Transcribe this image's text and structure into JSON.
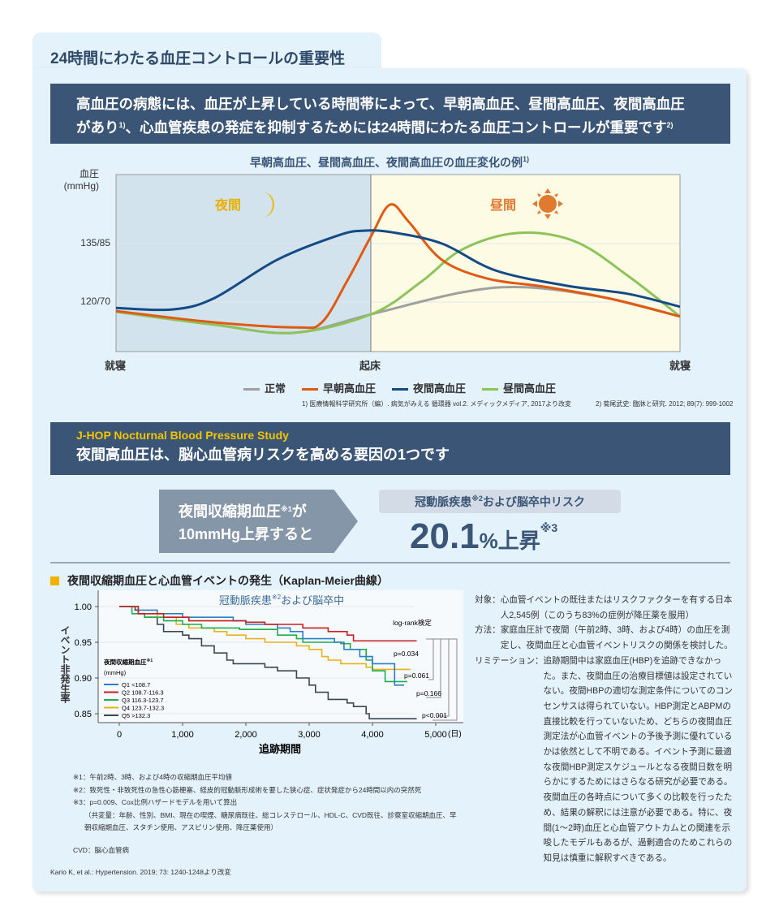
{
  "tab_title": "24時間にわたる血圧コントロールの重要性",
  "banner1": {
    "line1": "高血圧の病態には、血圧が上昇している時間帯によって、早朝高血圧、昼間高血圧、夜間高血圧",
    "line2a": "があり",
    "sup1": "1)",
    "line2b": "、心血管疾患の発症を抑制するためには24時間にわたる血圧コントロールが重要です",
    "sup2": "2)"
  },
  "chart_data": [
    {
      "type": "line",
      "title": "早朝高血圧、昼間高血圧、夜間高血圧の血圧変化の例",
      "title_sup": "1)",
      "ylabel": "血圧",
      "yunit": "(mmHg)",
      "ytick_labels": [
        "135/85",
        "120/70"
      ],
      "xtick_labels": [
        "就寝",
        "起床",
        "就寝"
      ],
      "x_domain": [
        0,
        100
      ],
      "wake_x": 45.3,
      "y_domain_systolic": [
        107.3,
        152.7
      ],
      "regions": {
        "night": "夜間",
        "day": "昼間"
      },
      "series": [
        {
          "name": "正常",
          "color": "#a0a0a0",
          "x": [
            0,
            17.4,
            31.4,
            45.3,
            61.4,
            72.5,
            87.2,
            100
          ],
          "y": [
            117.5,
            114.2,
            112.1,
            116.9,
            122.5,
            123.8,
            121,
            116.3
          ]
        },
        {
          "name": "早朝高血圧",
          "color": "#e05a14",
          "x": [
            0,
            17.4,
            32.1,
            36.5,
            40.9,
            45.3,
            48.6,
            51.9,
            57.8,
            65.9,
            76.1,
            87.2,
            100
          ],
          "y": [
            117.7,
            114.8,
            113.5,
            114.8,
            125.2,
            137.1,
            145,
            140.6,
            130.8,
            126,
            123.9,
            121,
            116.3
          ]
        },
        {
          "name": "夜間高血圧",
          "color": "#144a86",
          "x": [
            0,
            10,
            17.4,
            28.5,
            39.4,
            43.9,
            48.9,
            57.8,
            67.3,
            79.9,
            90.8,
            100
          ],
          "y": [
            118.5,
            118.1,
            121,
            130.8,
            137.1,
            138.3,
            137.9,
            135,
            128.1,
            124.2,
            122.1,
            118.8
          ]
        },
        {
          "name": "昼間高血圧",
          "color": "#8cc45a",
          "x": [
            0,
            17.4,
            31.4,
            45.3,
            54.1,
            61.4,
            71.1,
            81.3,
            90.8,
            100
          ],
          "y": [
            117.5,
            114.2,
            112.1,
            116.9,
            125.2,
            133.5,
            137.7,
            135.6,
            126.7,
            116.3
          ]
        }
      ]
    },
    {
      "type": "line",
      "subtype": "kaplan-meier",
      "title": "冠動脈疾患",
      "title_sup": "※2",
      "title_rest": "および脳卒中",
      "ylabel": "イベント非発生率",
      "xlabel": "追跡期間",
      "xunit": "(日)",
      "xlim": [
        0,
        5000
      ],
      "ylim": [
        0.85,
        1.0
      ],
      "xticks": [
        0,
        1000,
        2000,
        3000,
        4000,
        5000
      ],
      "xtick_labels": [
        "0",
        "1,000",
        "2,000",
        "3,000",
        "4,000",
        "5,000"
      ],
      "yticks": [
        1.0,
        0.95,
        0.9,
        0.85
      ],
      "ytick_labels": [
        "1.00",
        "0.95",
        "0.90",
        "0.85"
      ],
      "legend_title": "夜間収縮期血圧",
      "legend_title_sup": "※1",
      "legend_unit": "(mmHg)",
      "test_label": "log-rank検定",
      "pvalues": [
        "p=0.034",
        "p=0.061",
        "p=0.166",
        "p<0.001"
      ],
      "series": [
        {
          "name": "Q1 <108.7",
          "color": "#2a7fc4",
          "points": [
            [
              0,
              1
            ],
            [
              300,
              0.995
            ],
            [
              600,
              0.99
            ],
            [
              1000,
              0.985
            ],
            [
              1800,
              0.98
            ],
            [
              2000,
              0.975
            ],
            [
              2500,
              0.97
            ],
            [
              2700,
              0.965
            ],
            [
              2900,
              0.955
            ],
            [
              3400,
              0.95
            ],
            [
              3550,
              0.94
            ],
            [
              3800,
              0.93
            ],
            [
              4000,
              0.92
            ],
            [
              4350,
              0.89
            ],
            [
              4500,
              0.89
            ]
          ]
        },
        {
          "name": "Q2 108.7-116.3",
          "color": "#c8201e",
          "points": [
            [
              0,
              1
            ],
            [
              300,
              0.99
            ],
            [
              700,
              0.985
            ],
            [
              1100,
              0.98
            ],
            [
              2000,
              0.978
            ],
            [
              2300,
              0.975
            ],
            [
              2900,
              0.97
            ],
            [
              3300,
              0.965
            ],
            [
              3600,
              0.96
            ],
            [
              3700,
              0.952
            ],
            [
              4700,
              0.952
            ]
          ]
        },
        {
          "name": "Q3 116.3-123.7",
          "color": "#1fae4c",
          "points": [
            [
              0,
              1
            ],
            [
              200,
              0.99
            ],
            [
              400,
              0.985
            ],
            [
              700,
              0.98
            ],
            [
              1000,
              0.975
            ],
            [
              1300,
              0.97
            ],
            [
              1900,
              0.968
            ],
            [
              2500,
              0.96
            ],
            [
              2800,
              0.955
            ],
            [
              2900,
              0.95
            ],
            [
              3500,
              0.948
            ],
            [
              3650,
              0.94
            ],
            [
              3900,
              0.925
            ],
            [
              4000,
              0.91
            ],
            [
              4200,
              0.895
            ],
            [
              4550,
              0.895
            ]
          ]
        },
        {
          "name": "Q4 123.7-132.3",
          "color": "#e8b21e",
          "points": [
            [
              0,
              1
            ],
            [
              300,
              0.99
            ],
            [
              600,
              0.985
            ],
            [
              900,
              0.975
            ],
            [
              1100,
              0.97
            ],
            [
              1500,
              0.965
            ],
            [
              1700,
              0.96
            ],
            [
              2000,
              0.955
            ],
            [
              2300,
              0.95
            ],
            [
              2800,
              0.945
            ],
            [
              3000,
              0.94
            ],
            [
              3200,
              0.93
            ],
            [
              3300,
              0.925
            ],
            [
              3500,
              0.92
            ],
            [
              3900,
              0.915
            ],
            [
              4000,
              0.912
            ],
            [
              4600,
              0.912
            ]
          ]
        },
        {
          "name": "Q5 >132.3",
          "color": "#3c4650",
          "points": [
            [
              0,
              1
            ],
            [
              250,
              0.995
            ],
            [
              300,
              0.99
            ],
            [
              400,
              0.985
            ],
            [
              600,
              0.975
            ],
            [
              700,
              0.965
            ],
            [
              1000,
              0.96
            ],
            [
              1100,
              0.955
            ],
            [
              1300,
              0.945
            ],
            [
              1500,
              0.935
            ],
            [
              1700,
              0.925
            ],
            [
              1800,
              0.92
            ],
            [
              2300,
              0.915
            ],
            [
              2500,
              0.91
            ],
            [
              2800,
              0.9
            ],
            [
              3000,
              0.89
            ],
            [
              3100,
              0.88
            ],
            [
              3300,
              0.87
            ],
            [
              3600,
              0.865
            ],
            [
              3700,
              0.86
            ],
            [
              3900,
              0.85
            ],
            [
              3950,
              0.843
            ],
            [
              4700,
              0.843
            ]
          ]
        }
      ]
    }
  ],
  "footnotes1": [
    "1) 医療情報科学研究所（編）. 病気がみえる 循環器 vol.2. メディックメディア, 2017より改変",
    "2) 菊尾武史: 臨牀と研究. 2012; 89(7): 999-1002"
  ],
  "banner2": {
    "subtitle": "J-HOP Nocturnal Blood Pressure Study",
    "title": "夜間高血圧は、脳心血管病リスクを高める要因の1つです"
  },
  "arrow": {
    "line1a": "夜間収縮期血圧",
    "sup": "※1",
    "line1b": "が",
    "line2": "10mmHg上昇すると"
  },
  "risk": {
    "label_a": "冠動脈疾患",
    "label_sup": "※2",
    "label_b": "および脳卒中リスク",
    "value": "20.1",
    "unit": "%上昇",
    "sup": "※3"
  },
  "section_title": "夜間収縮期血圧と心血管イベントの発生（Kaplan-Meier曲線）",
  "study": [
    {
      "k": "対象：",
      "v": "心血管イベントの既往またはリスクファクターを有する日本人2,545例（このうち83%の症例が降圧薬を服用）"
    },
    {
      "k": "方法：",
      "v": "家庭血圧計で夜間（午前2時、3時、および4時）の血圧を測定し、夜間血圧と心血管イベントリスクの関係を検討した。"
    },
    {
      "k": "リミテーション：",
      "v": "追跡期間中は家庭血圧(HBP)を追跡できなかった。また、夜間血圧の治療目標値は設定されていない。夜間HBPの適切な測定条件についてのコンセンサスは得られていない。HBP測定とABPMの直接比較を行っていないため、どちらの夜間血圧測定法が心血管イベントの予後予測に優れているかは依然として不明である。イベント予測に最適な夜間HBP測定スケジュールとなる夜間日数を明らかにするためにはさらなる研究が必要である。夜間血圧の各時点について多くの比較を行ったため、結果の解釈には注意が必要である。特に、夜間(1〜2時)血圧と心血管アウトカムとの関連を示唆したモデルもあるが、過剰適合のためこれらの知見は慎重に解釈すべきである。"
    }
  ],
  "notes": [
    "※1：午前2時、3時、および4時の収縮期血圧平均値",
    "※2：致死性・非致死性の急性心筋梗塞、経皮的冠動脈形成術を要した狭心症、症状発症から24時間以内の突然死",
    "※3：p=0.009、Cox比例ハザードモデルを用いて算出",
    "（共変量：年齢、性別、BMI、現在の喫煙、糖尿病既往、総コレステロール、HDL-C、CVD既往、診察室収縮期血圧、早朝収縮期血圧、スタチン使用、アスピリン使用、降圧薬使用）",
    "CVD：脳心血管病"
  ],
  "citation": "Kario K, et al.: Hypertension. 2019; 73: 1240-1248より改変"
}
